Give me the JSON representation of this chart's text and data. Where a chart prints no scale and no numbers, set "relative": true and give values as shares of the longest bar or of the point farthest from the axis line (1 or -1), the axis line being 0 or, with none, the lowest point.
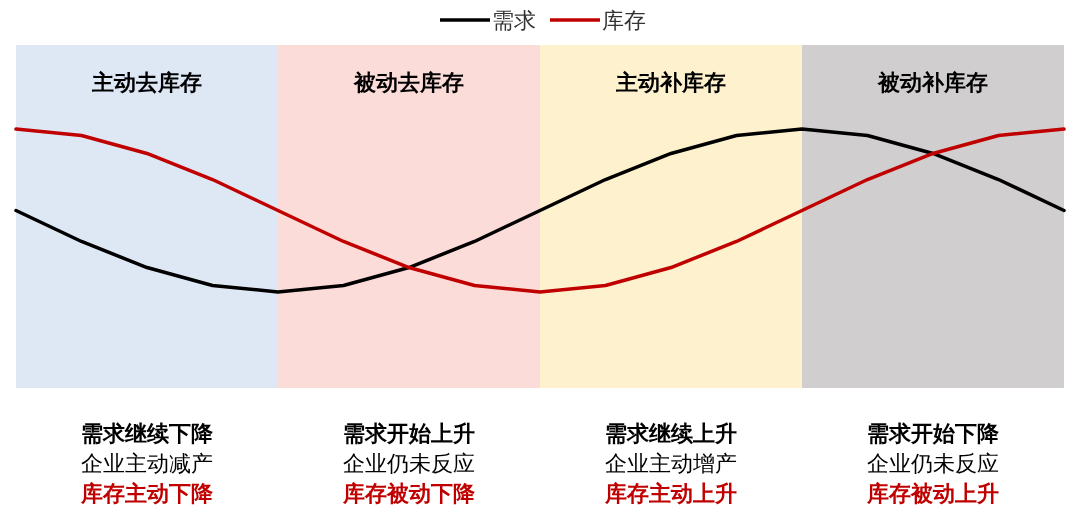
{
  "chart_data": {
    "type": "line",
    "relative": true,
    "legend": "top",
    "marker": "none",
    "line_style": "solid",
    "categories": [
      null,
      null,
      null,
      null,
      null,
      null,
      null,
      null,
      null,
      null,
      null,
      null,
      null,
      null,
      null,
      null,
      null
    ],
    "series": [
      {
        "name": "需求",
        "color": "#000000",
        "values": [
          0.5,
          0.31,
          0.15,
          0.04,
          0,
          0.04,
          0.15,
          0.31,
          0.5,
          0.69,
          0.85,
          0.96,
          1,
          0.96,
          0.85,
          0.69,
          0.5
        ]
      },
      {
        "name": "库存",
        "color": "#c00000",
        "values": [
          1,
          0.96,
          0.85,
          0.69,
          0.5,
          0.31,
          0.15,
          0.04,
          0,
          0.04,
          0.15,
          0.31,
          0.5,
          0.69,
          0.85,
          0.96,
          1
        ]
      }
    ],
    "annotations": [
      "主动去库存",
      "被动去库存",
      "主动补库存",
      "被动补库存",
      "需求继续下降",
      "企业主动减产",
      "库存主动下降",
      "需求开始上升",
      "企业仍未反应",
      "库存被动下降",
      "需求继续上升",
      "企业主动增产",
      "库存主动上升",
      "需求开始下降",
      "企业仍未反应",
      "库存被动上升"
    ]
  }
}
